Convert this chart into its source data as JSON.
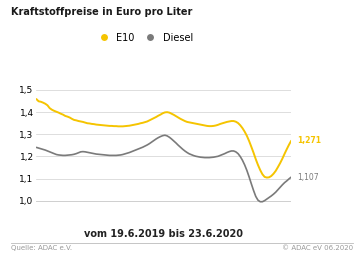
{
  "title": "Kraftstoffpreise in Euro pro Liter",
  "xlabel": "vom 19.6.2019 bis 23.6.2020",
  "e10_color": "#F5C400",
  "diesel_color": "#7A7A7A",
  "e10_label": "E10",
  "diesel_label": "Diesel",
  "e10_final_label": "1,271",
  "diesel_final_label": "1,107",
  "background_color": "#FFFFFF",
  "footer_left": "Quelle: ADAC e.V.",
  "footer_right": "© ADAC eV 06.2020",
  "ylim": [
    0.97,
    1.57
  ],
  "yticks": [
    1.0,
    1.1,
    1.2,
    1.3,
    1.4,
    1.5
  ],
  "ytick_labels": [
    "1,0",
    "1,1",
    "1,2",
    "1,3",
    "1,4",
    "1,5"
  ],
  "title_fontsize": 7.0,
  "axis_fontsize": 6.5,
  "legend_fontsize": 7.0,
  "xlabel_fontsize": 7.0,
  "footer_fontsize": 5.0,
  "e10_data": [
    1.459,
    1.449,
    1.447,
    1.443,
    1.438,
    1.431,
    1.418,
    1.411,
    1.406,
    1.402,
    1.398,
    1.393,
    1.389,
    1.383,
    1.38,
    1.376,
    1.37,
    1.365,
    1.363,
    1.36,
    1.358,
    1.356,
    1.353,
    1.35,
    1.349,
    1.347,
    1.346,
    1.344,
    1.343,
    1.342,
    1.341,
    1.34,
    1.339,
    1.338,
    1.338,
    1.337,
    1.337,
    1.336,
    1.336,
    1.336,
    1.337,
    1.338,
    1.339,
    1.341,
    1.343,
    1.345,
    1.347,
    1.35,
    1.352,
    1.355,
    1.358,
    1.363,
    1.368,
    1.373,
    1.378,
    1.384,
    1.389,
    1.395,
    1.399,
    1.4,
    1.398,
    1.393,
    1.388,
    1.382,
    1.376,
    1.37,
    1.365,
    1.36,
    1.356,
    1.354,
    1.352,
    1.35,
    1.348,
    1.346,
    1.344,
    1.342,
    1.34,
    1.338,
    1.337,
    1.337,
    1.338,
    1.34,
    1.343,
    1.347,
    1.35,
    1.353,
    1.356,
    1.358,
    1.36,
    1.36,
    1.357,
    1.351,
    1.341,
    1.328,
    1.312,
    1.293,
    1.27,
    1.244,
    1.217,
    1.188,
    1.162,
    1.139,
    1.12,
    1.108,
    1.105,
    1.106,
    1.112,
    1.122,
    1.135,
    1.152,
    1.17,
    1.19,
    1.212,
    1.233,
    1.253,
    1.271
  ],
  "diesel_data": [
    1.241,
    1.238,
    1.235,
    1.232,
    1.229,
    1.225,
    1.221,
    1.217,
    1.213,
    1.209,
    1.207,
    1.206,
    1.205,
    1.205,
    1.206,
    1.207,
    1.208,
    1.21,
    1.213,
    1.217,
    1.221,
    1.222,
    1.221,
    1.219,
    1.217,
    1.215,
    1.213,
    1.211,
    1.21,
    1.209,
    1.208,
    1.207,
    1.206,
    1.205,
    1.205,
    1.205,
    1.205,
    1.206,
    1.207,
    1.209,
    1.212,
    1.215,
    1.218,
    1.222,
    1.226,
    1.23,
    1.234,
    1.238,
    1.242,
    1.247,
    1.252,
    1.258,
    1.265,
    1.272,
    1.279,
    1.285,
    1.29,
    1.294,
    1.296,
    1.293,
    1.287,
    1.279,
    1.27,
    1.261,
    1.251,
    1.242,
    1.233,
    1.225,
    1.218,
    1.212,
    1.208,
    1.204,
    1.201,
    1.199,
    1.197,
    1.196,
    1.195,
    1.195,
    1.195,
    1.196,
    1.197,
    1.199,
    1.201,
    1.205,
    1.209,
    1.213,
    1.218,
    1.222,
    1.225,
    1.225,
    1.221,
    1.213,
    1.2,
    1.183,
    1.162,
    1.137,
    1.108,
    1.077,
    1.047,
    1.02,
    1.003,
    0.996,
    0.996,
    1.001,
    1.008,
    1.015,
    1.022,
    1.03,
    1.039,
    1.05,
    1.061,
    1.072,
    1.082,
    1.09,
    1.099,
    1.107
  ]
}
